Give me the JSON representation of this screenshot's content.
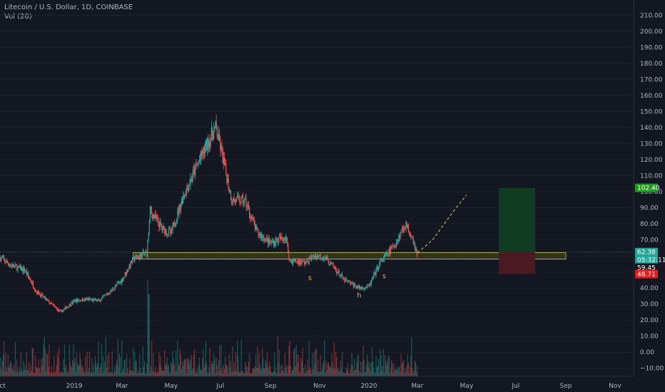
{
  "header": {
    "symbol_line": "Litecoin / U.S. Dollar, 1D, COINBASE",
    "volume_line": "Vol (20)"
  },
  "chart_data": {
    "type": "candlestick",
    "y_range": [
      -15,
      215
    ],
    "y_ticks": [
      "210.00",
      "200.00",
      "190.00",
      "180.00",
      "170.00",
      "160.00",
      "150.00",
      "140.00",
      "130.00",
      "120.00",
      "110.00",
      "100.00",
      "90.00",
      "80.00",
      "70.00",
      "60.00",
      "50.00",
      "40.00",
      "30.00",
      "20.00",
      "10.00",
      "0.00",
      "−10.00"
    ],
    "x_ticks": [
      "Oct",
      "2019",
      "Mar",
      "May",
      "Jul",
      "Sep",
      "Nov",
      "2020",
      "Mar",
      "May",
      "Jul",
      "Sep",
      "Nov"
    ],
    "price_path": [
      [
        "2018-10-01",
        59
      ],
      [
        "2018-10-15",
        54
      ],
      [
        "2018-11-01",
        51
      ],
      [
        "2018-11-15",
        38
      ],
      [
        "2018-12-01",
        31
      ],
      [
        "2018-12-15",
        25
      ],
      [
        "2019-01-01",
        32
      ],
      [
        "2019-01-15",
        33
      ],
      [
        "2019-02-01",
        32
      ],
      [
        "2019-02-15",
        38
      ],
      [
        "2019-03-01",
        45
      ],
      [
        "2019-03-15",
        58
      ],
      [
        "2019-04-01",
        62
      ],
      [
        "2019-04-05",
        88
      ],
      [
        "2019-04-20",
        77
      ],
      [
        "2019-05-01",
        74
      ],
      [
        "2019-05-15",
        96
      ],
      [
        "2019-06-01",
        115
      ],
      [
        "2019-06-15",
        130
      ],
      [
        "2019-06-25",
        140
      ],
      [
        "2019-07-01",
        128
      ],
      [
        "2019-07-15",
        95
      ],
      [
        "2019-08-01",
        94
      ],
      [
        "2019-08-15",
        75
      ],
      [
        "2019-09-01",
        68
      ],
      [
        "2019-09-20",
        72
      ],
      [
        "2019-09-25",
        57
      ],
      [
        "2019-10-15",
        56
      ],
      [
        "2019-10-25",
        60
      ],
      [
        "2019-11-05",
        60
      ],
      [
        "2019-11-20",
        52
      ],
      [
        "2019-12-01",
        45
      ],
      [
        "2019-12-20",
        40
      ],
      [
        "2020-01-01",
        41
      ],
      [
        "2020-01-15",
        56
      ],
      [
        "2020-02-01",
        66
      ],
      [
        "2020-02-15",
        80
      ],
      [
        "2020-02-24",
        72
      ],
      [
        "2020-03-01",
        60
      ]
    ],
    "projection_path": [
      [
        "2020-03-01",
        62
      ],
      [
        "2020-03-20",
        70
      ],
      [
        "2020-04-15",
        88
      ],
      [
        "2020-05-01",
        98
      ]
    ],
    "support_zone": {
      "from": "2019-03-15",
      "to": "2020-09-01",
      "low": 58,
      "high": 62
    },
    "trade_box": {
      "from": "2020-06-10",
      "to": "2020-07-25",
      "target": 102.4,
      "entry": 62.38,
      "stop": 48.71
    },
    "pattern_labels": [
      {
        "text": "s",
        "date": "2019-10-20",
        "price": 45
      },
      {
        "text": "h",
        "date": "2019-12-20",
        "price": 34
      },
      {
        "text": "s",
        "date": "2020-01-20",
        "price": 46
      }
    ],
    "price_badges": [
      {
        "text": "102.40",
        "price": 102.4,
        "color": "#1f9b1f"
      },
      {
        "text": "62.38",
        "price": 62.38,
        "color": "#26a69a"
      },
      {
        "text": "05:32:11",
        "price": 57.5,
        "color": "#26a69a"
      },
      {
        "text": "59.45",
        "price": 52.7,
        "color": "#131722"
      },
      {
        "text": "48.71",
        "price": 48.71,
        "color": "#e51c1c"
      }
    ],
    "last_price": 62.38
  },
  "colors": {
    "up": "#26a69a",
    "down": "#ef5350",
    "background": "#131722",
    "grid": "#1e222d",
    "zone_fill": "#4a4a14",
    "zone_edge": "#c8c84a",
    "target_fill": "#123b24",
    "stop_fill": "#4a1a22"
  }
}
